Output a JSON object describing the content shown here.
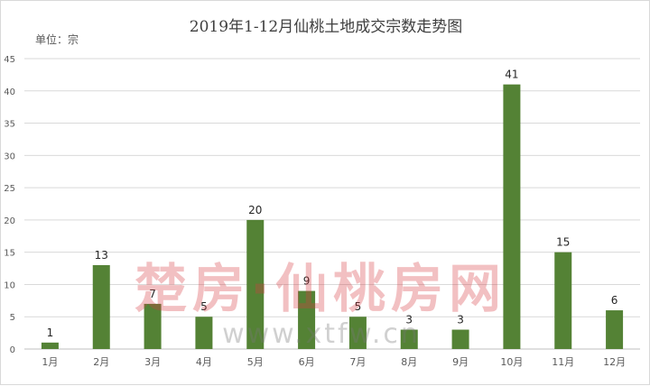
{
  "title": "2019年1-12月仙桃土地成交宗数走势图",
  "unit_label": "单位：宗",
  "watermark": {
    "text": "楚房·仙桃房网",
    "url": "www.xtfw.cn"
  },
  "colors": {
    "bar": "#548235",
    "grid": "#d9d9d9",
    "axis": "#bfbfbf",
    "text": "#595959"
  },
  "chart_data": {
    "type": "bar",
    "title": "2019年1-12月仙桃土地成交宗数走势图",
    "xlabel": "",
    "ylabel": "",
    "categories": [
      "1月",
      "2月",
      "3月",
      "4月",
      "5月",
      "6月",
      "7月",
      "8月",
      "9月",
      "10月",
      "11月",
      "12月"
    ],
    "values": [
      1,
      13,
      7,
      5,
      20,
      9,
      5,
      3,
      3,
      41,
      15,
      6
    ],
    "ylim": [
      0,
      45
    ],
    "yticks": [
      0,
      5,
      10,
      15,
      20,
      25,
      30,
      35,
      40,
      45
    ],
    "grid": true,
    "data_labels": true,
    "legend": "none"
  }
}
